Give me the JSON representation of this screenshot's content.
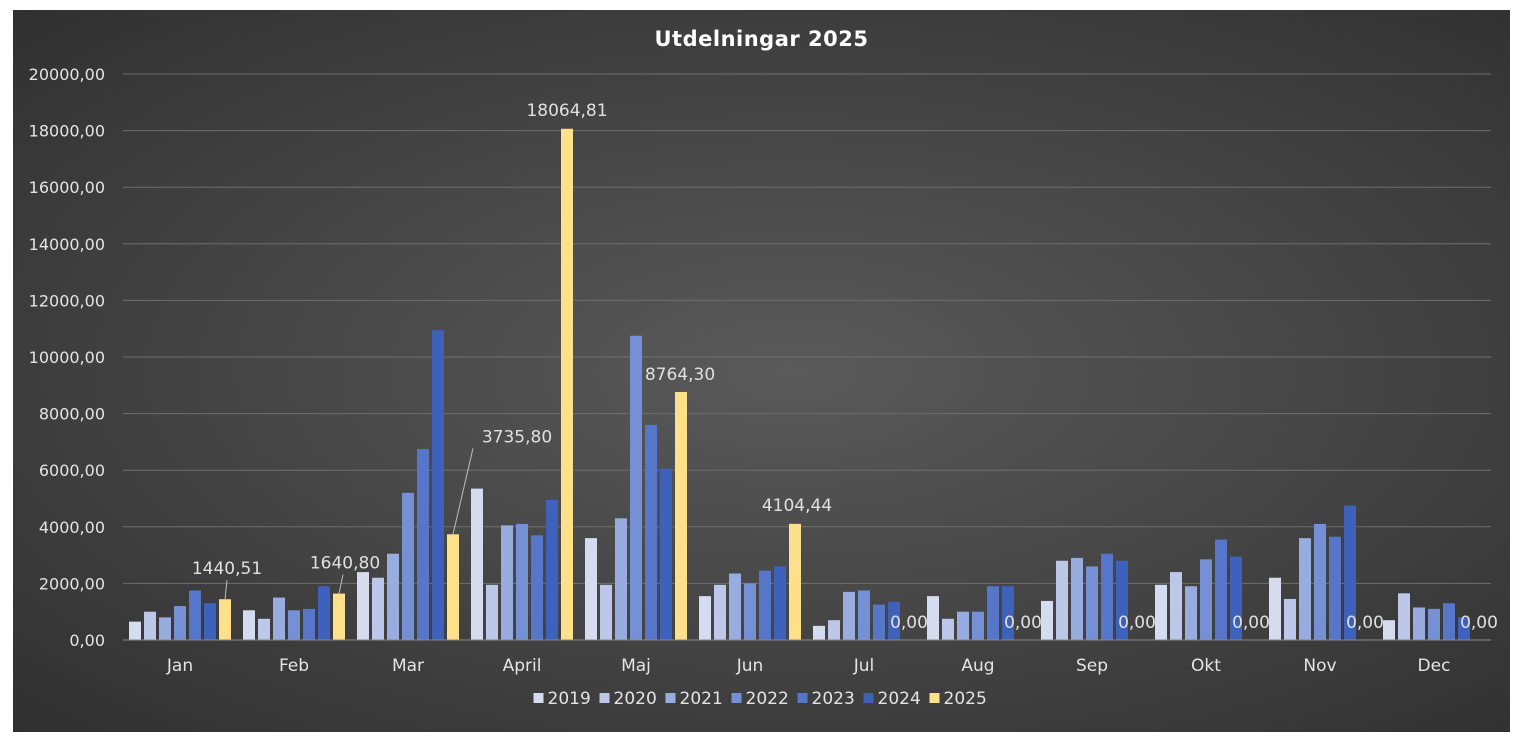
{
  "chart_data": {
    "type": "bar",
    "title": "Utdelningar 2025",
    "categories": [
      "Jan",
      "Feb",
      "Mar",
      "April",
      "Maj",
      "Jun",
      "Jul",
      "Aug",
      "Sep",
      "Okt",
      "Nov",
      "Dec"
    ],
    "ylim": [
      0,
      20000
    ],
    "ytick_values": [
      0,
      2000,
      4000,
      6000,
      8000,
      10000,
      12000,
      14000,
      16000,
      18000,
      20000
    ],
    "ytick_labels": [
      "0,00",
      "2000,00",
      "4000,00",
      "6000,00",
      "8000,00",
      "10000,00",
      "12000,00",
      "14000,00",
      "16000,00",
      "18000,00",
      "20000,00"
    ],
    "grid": true,
    "legend_position": "bottom",
    "series": [
      {
        "name": "2019",
        "color": "#d6dcf0",
        "values": [
          650,
          1050,
          2400,
          5350,
          3600,
          1550,
          500,
          1550,
          1380,
          1950,
          2200,
          700
        ]
      },
      {
        "name": "2020",
        "color": "#bcc7e9",
        "values": [
          1000,
          750,
          2200,
          1950,
          1950,
          1950,
          700,
          750,
          2800,
          2400,
          1450,
          1650
        ]
      },
      {
        "name": "2021",
        "color": "#98acdf",
        "values": [
          800,
          1500,
          3050,
          4050,
          4300,
          2350,
          1700,
          1000,
          2900,
          1900,
          3600,
          1150
        ]
      },
      {
        "name": "2022",
        "color": "#7590d4",
        "values": [
          1200,
          1050,
          5200,
          4100,
          10750,
          2000,
          1750,
          1000,
          2600,
          2850,
          4100,
          1100
        ]
      },
      {
        "name": "2023",
        "color": "#5677c9",
        "values": [
          1750,
          1100,
          6750,
          3700,
          7600,
          2450,
          1250,
          1900,
          3050,
          3550,
          3650,
          1300
        ]
      },
      {
        "name": "2024",
        "color": "#3e62bb",
        "values": [
          1300,
          1900,
          10950,
          4950,
          6050,
          2600,
          1350,
          1900,
          2800,
          2950,
          4750,
          800
        ]
      },
      {
        "name": "2025",
        "color": "#ffe08a",
        "values": [
          1440.51,
          1640.8,
          3735.8,
          18064.81,
          8764.3,
          4104.44,
          0,
          0,
          0,
          0,
          0,
          0
        ]
      }
    ],
    "data_labels": [
      "1440,51",
      "1640,80",
      "3735,80",
      "18064,81",
      "8764,30",
      "4104,44",
      "0,00",
      "0,00",
      "0,00",
      "0,00",
      "0,00",
      "0,00"
    ]
  }
}
